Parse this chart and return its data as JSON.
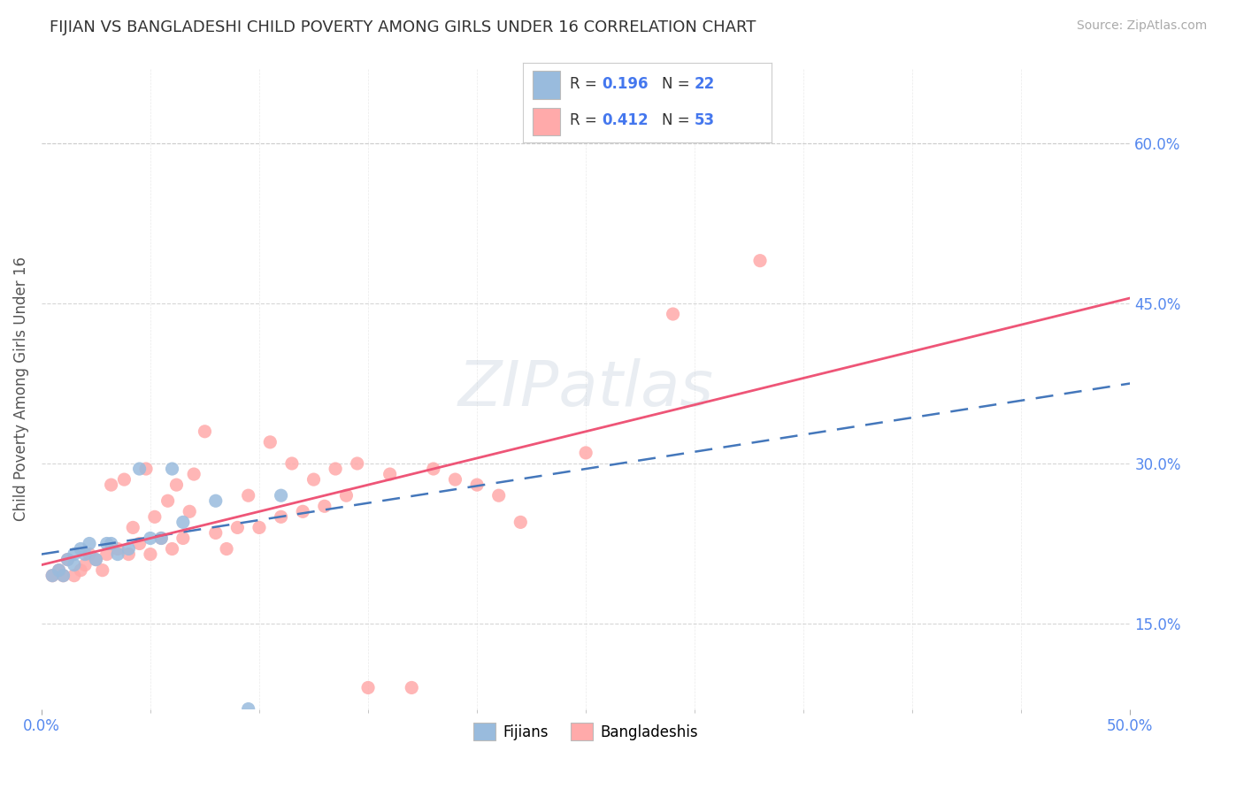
{
  "title": "FIJIAN VS BANGLADESHI CHILD POVERTY AMONG GIRLS UNDER 16 CORRELATION CHART",
  "source": "Source: ZipAtlas.com",
  "ylabel": "Child Poverty Among Girls Under 16",
  "xlim": [
    0.0,
    0.5
  ],
  "ylim": [
    0.07,
    0.67
  ],
  "xtick_positions": [
    0.0,
    0.5
  ],
  "xtick_labels": [
    "0.0%",
    "50.0%"
  ],
  "ytick_vals": [
    0.15,
    0.3,
    0.45,
    0.6
  ],
  "ytick_labels": [
    "15.0%",
    "30.0%",
    "45.0%",
    "60.0%"
  ],
  "fijian_color": "#99BBDD",
  "bangladeshi_color": "#FFAAAA",
  "fijian_line_color": "#4477BB",
  "bangladeshi_line_color": "#EE5577",
  "fijian_R": 0.196,
  "fijian_N": 22,
  "bangladeshi_R": 0.412,
  "bangladeshi_N": 53,
  "legend_label_fijian": "Fijians",
  "legend_label_bangladeshi": "Bangladeshis",
  "watermark": "ZIPatlas",
  "watermark_color": "#AABBCC",
  "fijian_scatter_x": [
    0.005,
    0.008,
    0.01,
    0.012,
    0.015,
    0.015,
    0.018,
    0.02,
    0.022,
    0.025,
    0.03,
    0.032,
    0.035,
    0.04,
    0.045,
    0.05,
    0.055,
    0.06,
    0.065,
    0.08,
    0.095,
    0.11
  ],
  "fijian_scatter_y": [
    0.195,
    0.2,
    0.195,
    0.21,
    0.205,
    0.215,
    0.22,
    0.215,
    0.225,
    0.21,
    0.225,
    0.225,
    0.215,
    0.22,
    0.295,
    0.23,
    0.23,
    0.295,
    0.245,
    0.265,
    0.07,
    0.27
  ],
  "bangladeshi_scatter_x": [
    0.005,
    0.008,
    0.01,
    0.012,
    0.015,
    0.018,
    0.02,
    0.022,
    0.025,
    0.028,
    0.03,
    0.032,
    0.035,
    0.038,
    0.04,
    0.042,
    0.045,
    0.048,
    0.05,
    0.052,
    0.055,
    0.058,
    0.06,
    0.062,
    0.065,
    0.068,
    0.07,
    0.075,
    0.08,
    0.085,
    0.09,
    0.095,
    0.1,
    0.105,
    0.11,
    0.115,
    0.12,
    0.125,
    0.13,
    0.135,
    0.14,
    0.145,
    0.15,
    0.16,
    0.17,
    0.18,
    0.19,
    0.2,
    0.21,
    0.22,
    0.25,
    0.29,
    0.33
  ],
  "bangladeshi_scatter_y": [
    0.195,
    0.2,
    0.195,
    0.21,
    0.195,
    0.2,
    0.205,
    0.215,
    0.21,
    0.2,
    0.215,
    0.28,
    0.22,
    0.285,
    0.215,
    0.24,
    0.225,
    0.295,
    0.215,
    0.25,
    0.23,
    0.265,
    0.22,
    0.28,
    0.23,
    0.255,
    0.29,
    0.33,
    0.235,
    0.22,
    0.24,
    0.27,
    0.24,
    0.32,
    0.25,
    0.3,
    0.255,
    0.285,
    0.26,
    0.295,
    0.27,
    0.3,
    0.09,
    0.29,
    0.09,
    0.295,
    0.285,
    0.28,
    0.27,
    0.245,
    0.31,
    0.44,
    0.49
  ],
  "ban_trend_x0": 0.0,
  "ban_trend_y0": 0.205,
  "ban_trend_x1": 0.5,
  "ban_trend_y1": 0.455,
  "fij_trend_x0": 0.0,
  "fij_trend_y0": 0.215,
  "fij_trend_x1": 0.5,
  "fij_trend_y1": 0.375
}
